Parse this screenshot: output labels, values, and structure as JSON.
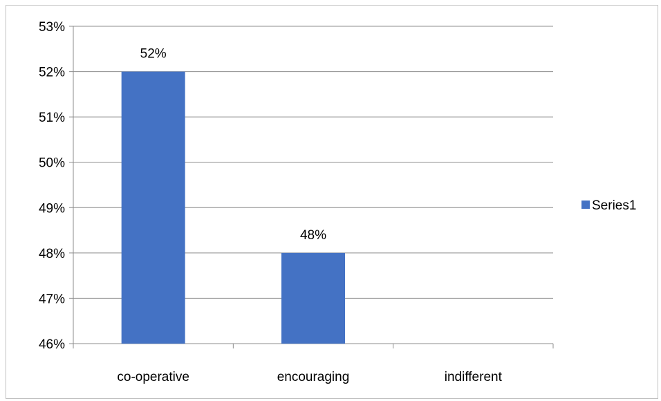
{
  "chart_data": {
    "type": "bar",
    "categories": [
      "co-operative",
      "encouraging",
      "indifferent"
    ],
    "series": [
      {
        "name": "Series1",
        "values": [
          0.52,
          0.48,
          0.46
        ],
        "value_labels": [
          "52%",
          "48%",
          ""
        ]
      }
    ],
    "ylim": [
      0.46,
      0.53
    ],
    "yticks": [
      0.46,
      0.47,
      0.48,
      0.49,
      0.5,
      0.51,
      0.52,
      0.53
    ],
    "ytick_labels": [
      "46%",
      "47%",
      "48%",
      "49%",
      "50%",
      "51%",
      "52%",
      "53%"
    ],
    "grid": true,
    "legend_position": "right",
    "title": "",
    "xlabel": "",
    "ylabel": ""
  },
  "colors": {
    "bar": "#4472C4",
    "grid": "#8c8c8c",
    "axis": "#8c8c8c",
    "frame": "#bfbfbf"
  }
}
